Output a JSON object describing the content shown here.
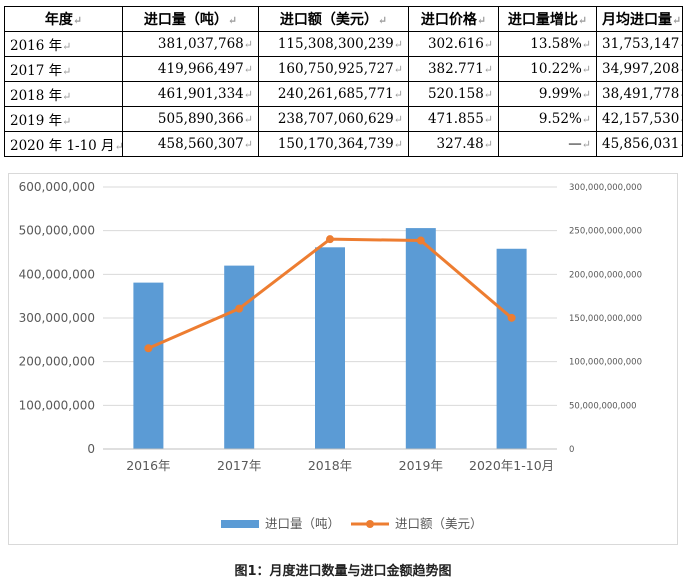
{
  "table": {
    "headers": [
      "年度",
      "进口量（吨）",
      "进口额（美元）",
      "进口价格",
      "进口量增比",
      "月均进口量"
    ],
    "rows": [
      [
        "2016 年",
        "381,037,768",
        "115,308,300,239",
        "302.616",
        "13.58%",
        "31,753,147"
      ],
      [
        "2017 年",
        "419,966,497",
        "160,750,925,727",
        "382.771",
        "10.22%",
        "34,997,208"
      ],
      [
        "2018 年",
        "461,901,334",
        "240,261,685,771",
        "520.158",
        "9.99%",
        "38,491,778"
      ],
      [
        "2019 年",
        "505,890,366",
        "238,707,060,629",
        "471.855",
        "9.52%",
        "42,157,530"
      ],
      [
        "2020 年 1-10 月",
        "458,560,307",
        "150,170,364,739",
        "327.48",
        "—",
        "45,856,031"
      ]
    ]
  },
  "chart_data": {
    "type": "bar+line",
    "categories": [
      "2016年",
      "2017年",
      "2018年",
      "2019年",
      "2020年1-10月"
    ],
    "series": [
      {
        "name": "进口量（吨）",
        "type": "bar",
        "axis": "left",
        "values": [
          381037768,
          419966497,
          461901334,
          505890366,
          458560307
        ]
      },
      {
        "name": "进口额（美元）",
        "type": "line",
        "axis": "right",
        "values": [
          115308300239,
          160750925727,
          240261685771,
          238707060629,
          150170364739
        ]
      }
    ],
    "y_left": {
      "ylim": [
        0,
        600000000
      ],
      "ticks": [
        "0",
        "100,000,000",
        "200,000,000",
        "300,000,000",
        "400,000,000",
        "500,000,000",
        "600,000,000"
      ]
    },
    "y_right": {
      "ylim": [
        0,
        300000000000
      ],
      "ticks": [
        "0",
        "50,000,000,000",
        "100,000,000,000",
        "150,000,000,000",
        "200,000,000,000",
        "250,000,000,000",
        "300,000,000,000"
      ]
    },
    "grid": true,
    "legend": "bottom",
    "colors": {
      "bar": "#5b9bd5",
      "line": "#ed7d31",
      "grid": "#d9d9d9"
    }
  },
  "caption": "图1：月度进口数量与进口金额趋势图"
}
